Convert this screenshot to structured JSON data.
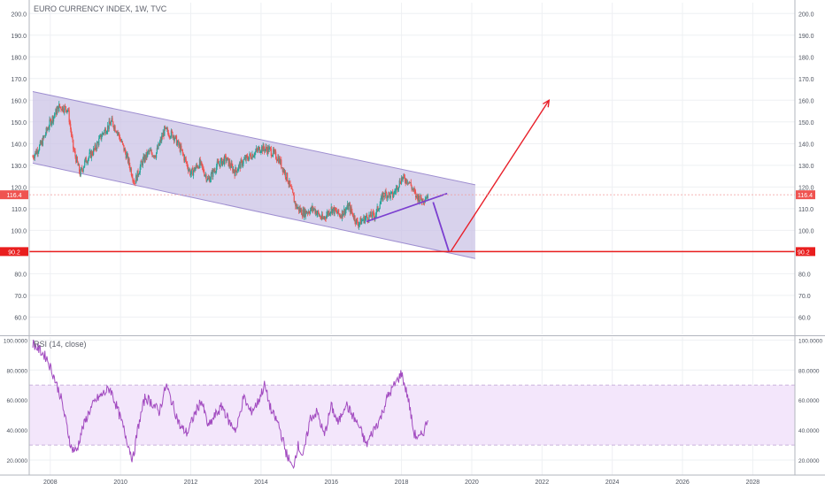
{
  "title": "EURO CURRENCY INDEX, 1W, TVC",
  "price_axis": {
    "ticks": [
      "200.0",
      "190.0",
      "180.0",
      "170.0",
      "160.0",
      "150.0",
      "140.0",
      "130.0",
      "120.0",
      "110.0",
      "100.0",
      "90.0",
      "80.0",
      "70.0",
      "60.0"
    ],
    "tick_values": [
      200,
      190,
      180,
      170,
      160,
      150,
      140,
      130,
      120,
      110,
      100,
      90,
      80,
      70,
      60
    ],
    "ylim": [
      52,
      205
    ]
  },
  "rsi_axis": {
    "label": "RSI (14, close)",
    "ticks": [
      "100.0000",
      "80.0000",
      "60.0000",
      "40.0000",
      "20.0000"
    ],
    "tick_values": [
      100,
      80,
      60,
      40,
      20
    ],
    "ylim": [
      10,
      102
    ],
    "band": [
      30,
      70
    ]
  },
  "time_axis": {
    "ticks": [
      "2008",
      "2010",
      "2012",
      "2014",
      "2016",
      "2018",
      "2020",
      "2022",
      "2024",
      "2026",
      "2028"
    ],
    "tick_values": [
      2008,
      2010,
      2012,
      2014,
      2016,
      2018,
      2020,
      2022,
      2024,
      2026,
      2028
    ],
    "xlim": [
      2007.4,
      2029.2
    ]
  },
  "markers": {
    "last_price": "116.4",
    "last_price_value": 116.4,
    "support": "90.2",
    "support_value": 90.2
  },
  "colors": {
    "up": "#26a69a",
    "down": "#ef5350",
    "channel_fill": "#cbc3e6",
    "channel_line": "#9e8ed0",
    "support_line": "#e91e1e",
    "arrow": "#e8202a",
    "purple_line": "#7b3fd0",
    "rsi_line": "#a24bc0",
    "rsi_band": "#f3e6fb"
  },
  "chart_data": [
    {
      "type": "line",
      "title": "EURO CURRENCY INDEX, 1W, TVC",
      "series_style": "candlestick (weekly), approximate closes",
      "x": [
        2007.5,
        2007.75,
        2008.0,
        2008.25,
        2008.5,
        2008.65,
        2008.85,
        2009.0,
        2009.25,
        2009.5,
        2009.75,
        2009.9,
        2010.2,
        2010.4,
        2010.6,
        2010.8,
        2011.0,
        2011.25,
        2011.5,
        2011.75,
        2012.0,
        2012.25,
        2012.5,
        2012.75,
        2013.0,
        2013.25,
        2013.5,
        2013.75,
        2014.0,
        2014.25,
        2014.5,
        2014.75,
        2015.0,
        2015.2,
        2015.5,
        2015.75,
        2016.0,
        2016.25,
        2016.5,
        2016.75,
        2017.0,
        2017.25,
        2017.5,
        2017.75,
        2018.0,
        2018.2,
        2018.4,
        2018.6,
        2018.75
      ],
      "values": [
        134,
        140,
        150,
        157,
        156,
        138,
        126,
        132,
        137,
        145,
        150,
        146,
        133,
        122,
        131,
        136,
        135,
        146,
        144,
        136,
        126,
        131,
        123,
        130,
        133,
        127,
        132,
        135,
        138,
        137,
        133,
        124,
        111,
        108,
        110,
        105,
        110,
        107,
        111,
        103,
        106,
        107,
        117,
        116,
        124,
        123,
        116,
        114,
        116.4
      ],
      "channel": {
        "upper": [
          [
            2007.5,
            164
          ],
          [
            2020.1,
            121
          ]
        ],
        "lower": [
          [
            2007.5,
            131
          ],
          [
            2020.1,
            87
          ]
        ]
      },
      "annotations": [
        {
          "type": "trendline",
          "from": [
            2017.0,
            104
          ],
          "to": [
            2019.3,
            117
          ]
        },
        {
          "type": "projection",
          "from": [
            2018.9,
            113
          ],
          "to": [
            2019.35,
            90.2
          ]
        },
        {
          "type": "arrow",
          "from": [
            2019.4,
            90.2
          ],
          "to": [
            2022.2,
            160
          ]
        },
        {
          "type": "hline",
          "y": 90.2
        },
        {
          "type": "hline",
          "y": 116.4
        }
      ],
      "ylim": [
        52,
        205
      ],
      "xlim": [
        2007.4,
        2029.2
      ]
    },
    {
      "type": "line",
      "title": "RSI (14, close)",
      "x": [
        2007.5,
        2007.75,
        2007.9,
        2008.1,
        2008.3,
        2008.45,
        2008.6,
        2008.75,
        2008.9,
        2009.1,
        2009.3,
        2009.5,
        2009.7,
        2009.9,
        2010.1,
        2010.35,
        2010.5,
        2010.7,
        2010.9,
        2011.1,
        2011.3,
        2011.5,
        2011.7,
        2011.9,
        2012.1,
        2012.3,
        2012.5,
        2012.7,
        2012.9,
        2013.1,
        2013.3,
        2013.5,
        2013.7,
        2013.9,
        2014.1,
        2014.3,
        2014.5,
        2014.7,
        2014.9,
        2015.05,
        2015.2,
        2015.4,
        2015.6,
        2015.8,
        2016.0,
        2016.2,
        2016.4,
        2016.6,
        2016.8,
        2017.0,
        2017.2,
        2017.4,
        2017.6,
        2017.8,
        2018.0,
        2018.2,
        2018.35,
        2018.5,
        2018.65,
        2018.75
      ],
      "values": [
        98,
        92,
        88,
        76,
        62,
        45,
        28,
        26,
        40,
        52,
        60,
        64,
        68,
        55,
        40,
        20,
        42,
        62,
        58,
        52,
        70,
        56,
        42,
        38,
        50,
        60,
        42,
        50,
        56,
        45,
        40,
        62,
        52,
        58,
        70,
        52,
        44,
        26,
        14,
        30,
        22,
        48,
        52,
        36,
        56,
        44,
        58,
        50,
        42,
        30,
        40,
        48,
        62,
        70,
        78,
        60,
        38,
        34,
        40,
        48
      ],
      "band": [
        30,
        70
      ],
      "ylim": [
        10,
        102
      ],
      "xlim": [
        2007.4,
        2029.2
      ]
    }
  ]
}
